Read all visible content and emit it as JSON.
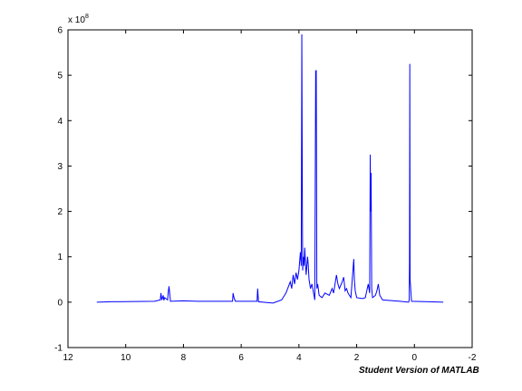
{
  "chart_data": {
    "type": "line",
    "title": "",
    "xlabel": "",
    "ylabel": "",
    "xlim": [
      12,
      -2
    ],
    "ylim": [
      -1,
      6
    ],
    "x_reversed": true,
    "y_exponent_label": "x 10",
    "y_exponent_power": "8",
    "x_ticks": [
      12,
      10,
      8,
      6,
      4,
      2,
      0,
      -2
    ],
    "y_ticks": [
      -1,
      0,
      1,
      2,
      3,
      4,
      5,
      6
    ],
    "grid": false,
    "line_color": "#0000ff",
    "series": [
      {
        "values_x": [
          11.0,
          10.5,
          9.0,
          8.8,
          8.78,
          8.75,
          8.7,
          8.68,
          8.65,
          8.55,
          8.52,
          8.5,
          8.45,
          8.0,
          7.5,
          6.3,
          6.28,
          6.25,
          6.2,
          5.45,
          5.43,
          5.4,
          4.9,
          4.6,
          4.5,
          4.45,
          4.3,
          4.25,
          4.2,
          4.15,
          4.1,
          4.05,
          4.0,
          3.95,
          3.92,
          3.9,
          3.88,
          3.87,
          3.85,
          3.82,
          3.8,
          3.75,
          3.7,
          3.68,
          3.65,
          3.6,
          3.55,
          3.45,
          3.42,
          3.4,
          3.38,
          3.35,
          3.3,
          3.2,
          3.1,
          2.95,
          2.85,
          2.8,
          2.7,
          2.65,
          2.6,
          2.5,
          2.45,
          2.4,
          2.35,
          2.3,
          2.2,
          2.1,
          2.08,
          2.05,
          2.0,
          1.8,
          1.7,
          1.6,
          1.55,
          1.53,
          1.52,
          1.5,
          1.48,
          1.45,
          1.35,
          1.3,
          1.25,
          1.2,
          1.1,
          0.5,
          0.2,
          0.18,
          0.17,
          0.16,
          0.15,
          0.1,
          -0.5,
          -1.0
        ],
        "values_y": [
          0.0,
          0.01,
          0.02,
          0.05,
          0.2,
          0.05,
          0.15,
          0.04,
          0.1,
          0.05,
          0.25,
          0.35,
          0.02,
          0.03,
          0.02,
          0.02,
          0.2,
          0.1,
          0.02,
          0.02,
          0.3,
          0.01,
          -0.02,
          0.05,
          0.15,
          0.2,
          0.45,
          0.3,
          0.6,
          0.4,
          0.65,
          0.5,
          0.7,
          1.1,
          0.8,
          5.9,
          2.05,
          0.7,
          1.0,
          0.8,
          1.2,
          0.6,
          1.0,
          0.85,
          0.5,
          0.3,
          0.4,
          0.05,
          5.1,
          5.1,
          0.3,
          0.4,
          0.15,
          0.1,
          0.2,
          0.15,
          0.3,
          0.2,
          0.6,
          0.4,
          0.3,
          0.45,
          0.55,
          0.25,
          0.3,
          0.2,
          0.1,
          0.95,
          0.5,
          0.25,
          0.1,
          0.08,
          0.1,
          0.4,
          0.2,
          3.25,
          2.0,
          2.85,
          0.3,
          0.1,
          0.15,
          0.25,
          0.4,
          0.15,
          0.05,
          0.02,
          0.0,
          0.05,
          0.85,
          5.25,
          0.5,
          0.02,
          0.01,
          0.0
        ]
      }
    ]
  },
  "watermark": "Student Version of MATLAB"
}
